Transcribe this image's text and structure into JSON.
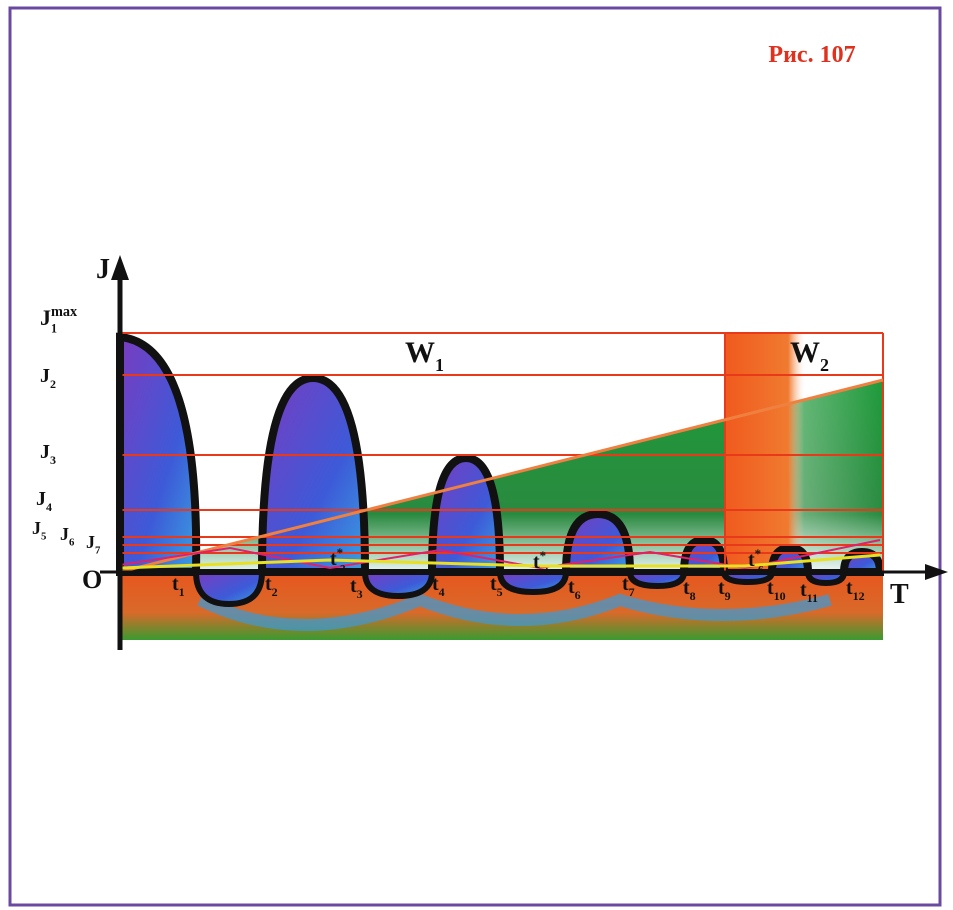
{
  "figure_label": "Рис. 107",
  "axes": {
    "y": "J",
    "x": "T",
    "origin": "O"
  },
  "j_labels": [
    {
      "base": "J",
      "sub": "1",
      "sup": "max"
    },
    {
      "base": "J",
      "sub": "2"
    },
    {
      "base": "J",
      "sub": "3"
    },
    {
      "base": "J",
      "sub": "4"
    },
    {
      "base": "J",
      "sub": "5"
    },
    {
      "base": "J",
      "sub": "6"
    },
    {
      "base": "J",
      "sub": "7"
    }
  ],
  "regions": [
    {
      "base": "W",
      "sub": "1"
    },
    {
      "base": "W",
      "sub": "2"
    }
  ],
  "t_labels": [
    {
      "base": "t",
      "sub": "1"
    },
    {
      "base": "t",
      "sub": "2"
    },
    {
      "base": "t",
      "sub": "2",
      "sup": "*"
    },
    {
      "base": "t",
      "sub": "3"
    },
    {
      "base": "t",
      "sub": "4"
    },
    {
      "base": "t",
      "sub": "5"
    },
    {
      "base": "t",
      "sub": "4",
      "sup": "*"
    },
    {
      "base": "t",
      "sub": "6"
    },
    {
      "base": "t",
      "sub": "7"
    },
    {
      "base": "t",
      "sub": "8"
    },
    {
      "base": "t",
      "sub": "9"
    },
    {
      "base": "t",
      "sub": "6",
      "sup": "*"
    },
    {
      "base": "t",
      "sub": "10"
    },
    {
      "base": "t",
      "sub": "11"
    },
    {
      "base": "t",
      "sub": "12"
    }
  ]
}
